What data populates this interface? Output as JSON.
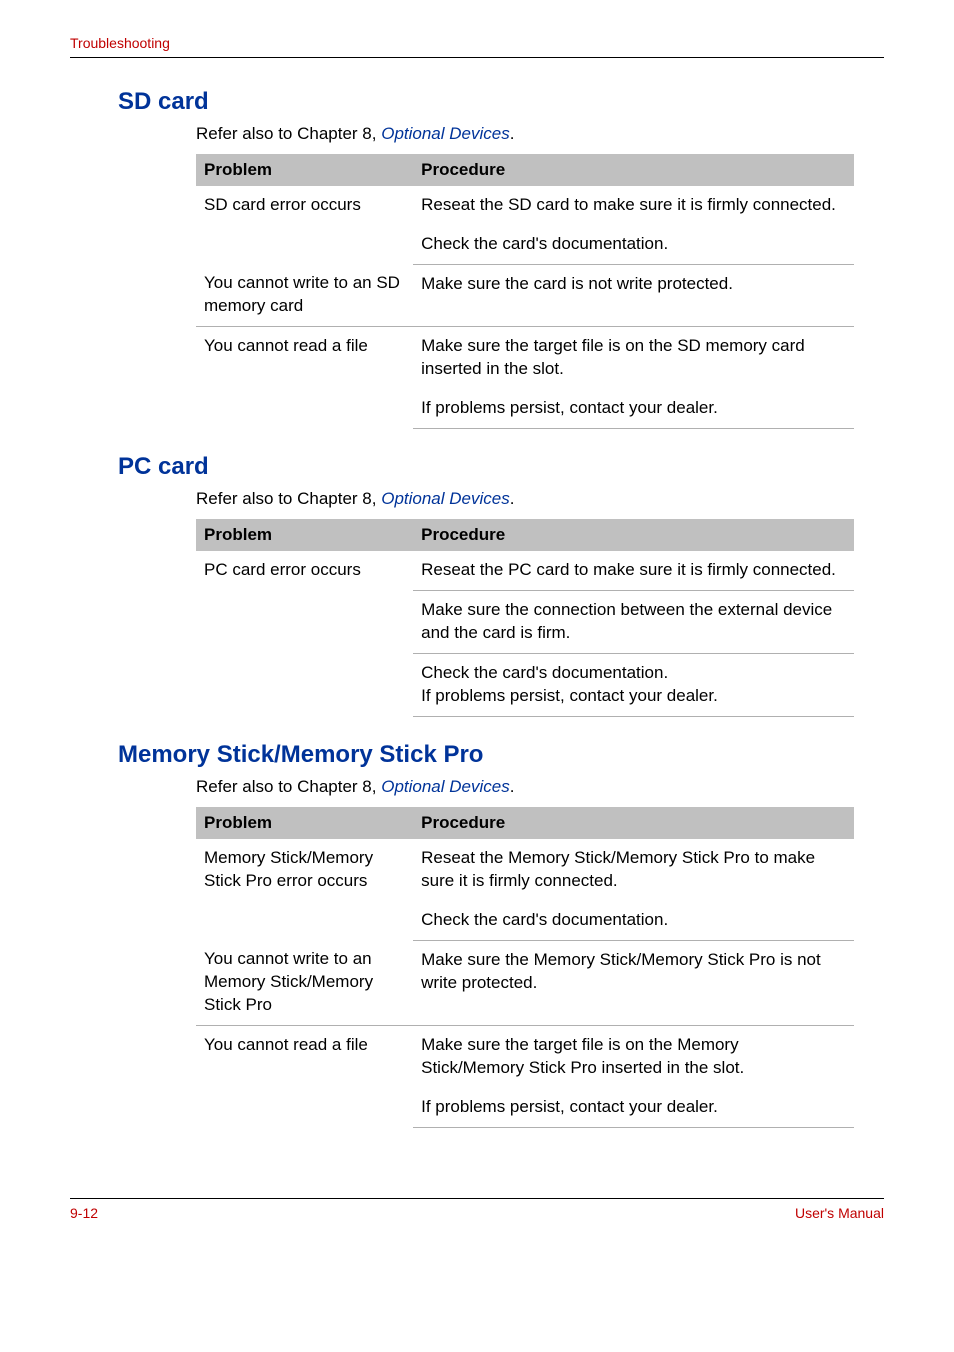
{
  "header": {
    "title": "Troubleshooting"
  },
  "sections": {
    "sd": {
      "heading": "SD card",
      "refer_prefix": "Refer also to Chapter 8, ",
      "refer_link": "Optional Devices",
      "refer_suffix": ".",
      "col_problem": "Problem",
      "col_procedure": "Procedure",
      "rows": {
        "r1": {
          "problem": "SD card error occurs",
          "proc1": "Reseat the SD card to make sure it is firmly connected.",
          "proc2": "Check the card's documentation."
        },
        "r2": {
          "problem": "You cannot write to an SD memory card",
          "proc": "Make sure the card is not write protected."
        },
        "r3": {
          "problem": "You cannot read a file",
          "proc1": "Make sure the target file is on the SD memory card inserted in the slot.",
          "proc2": "If problems persist, contact your dealer."
        }
      }
    },
    "pc": {
      "heading": "PC card",
      "refer_prefix": "Refer also to Chapter 8, ",
      "refer_link": "Optional Devices",
      "refer_suffix": ".",
      "col_problem": "Problem",
      "col_procedure": "Procedure",
      "rows": {
        "r1": {
          "problem": "PC card error occurs",
          "proc": "Reseat the PC card to make sure it is firmly connected."
        },
        "r2": {
          "proc": "Make sure the connection between the external device and the card is firm."
        },
        "r3": {
          "proc1": "Check the card's documentation.",
          "proc2": "If problems persist, contact your dealer."
        }
      }
    },
    "ms": {
      "heading": "Memory Stick/Memory Stick Pro",
      "refer_prefix": "Refer also to Chapter 8, ",
      "refer_link": "Optional Devices",
      "refer_suffix": ".",
      "col_problem": "Problem",
      "col_procedure": "Procedure",
      "rows": {
        "r1": {
          "problem": "Memory Stick/Memory Stick Pro error occurs",
          "proc1": "Reseat the Memory Stick/Memory Stick Pro to make sure it is firmly connected.",
          "proc2": "Check the card's documentation."
        },
        "r2": {
          "problem": "You cannot write to an Memory Stick/Memory Stick Pro",
          "proc": "Make sure the Memory Stick/Memory Stick Pro is not write protected."
        },
        "r3": {
          "problem": "You cannot read a file",
          "proc1": "Make sure the target file is on the Memory Stick/Memory Stick Pro inserted in the slot.",
          "proc2": "If problems persist, contact your dealer."
        }
      }
    }
  },
  "footer": {
    "page": "9-12",
    "manual": "User's Manual"
  }
}
